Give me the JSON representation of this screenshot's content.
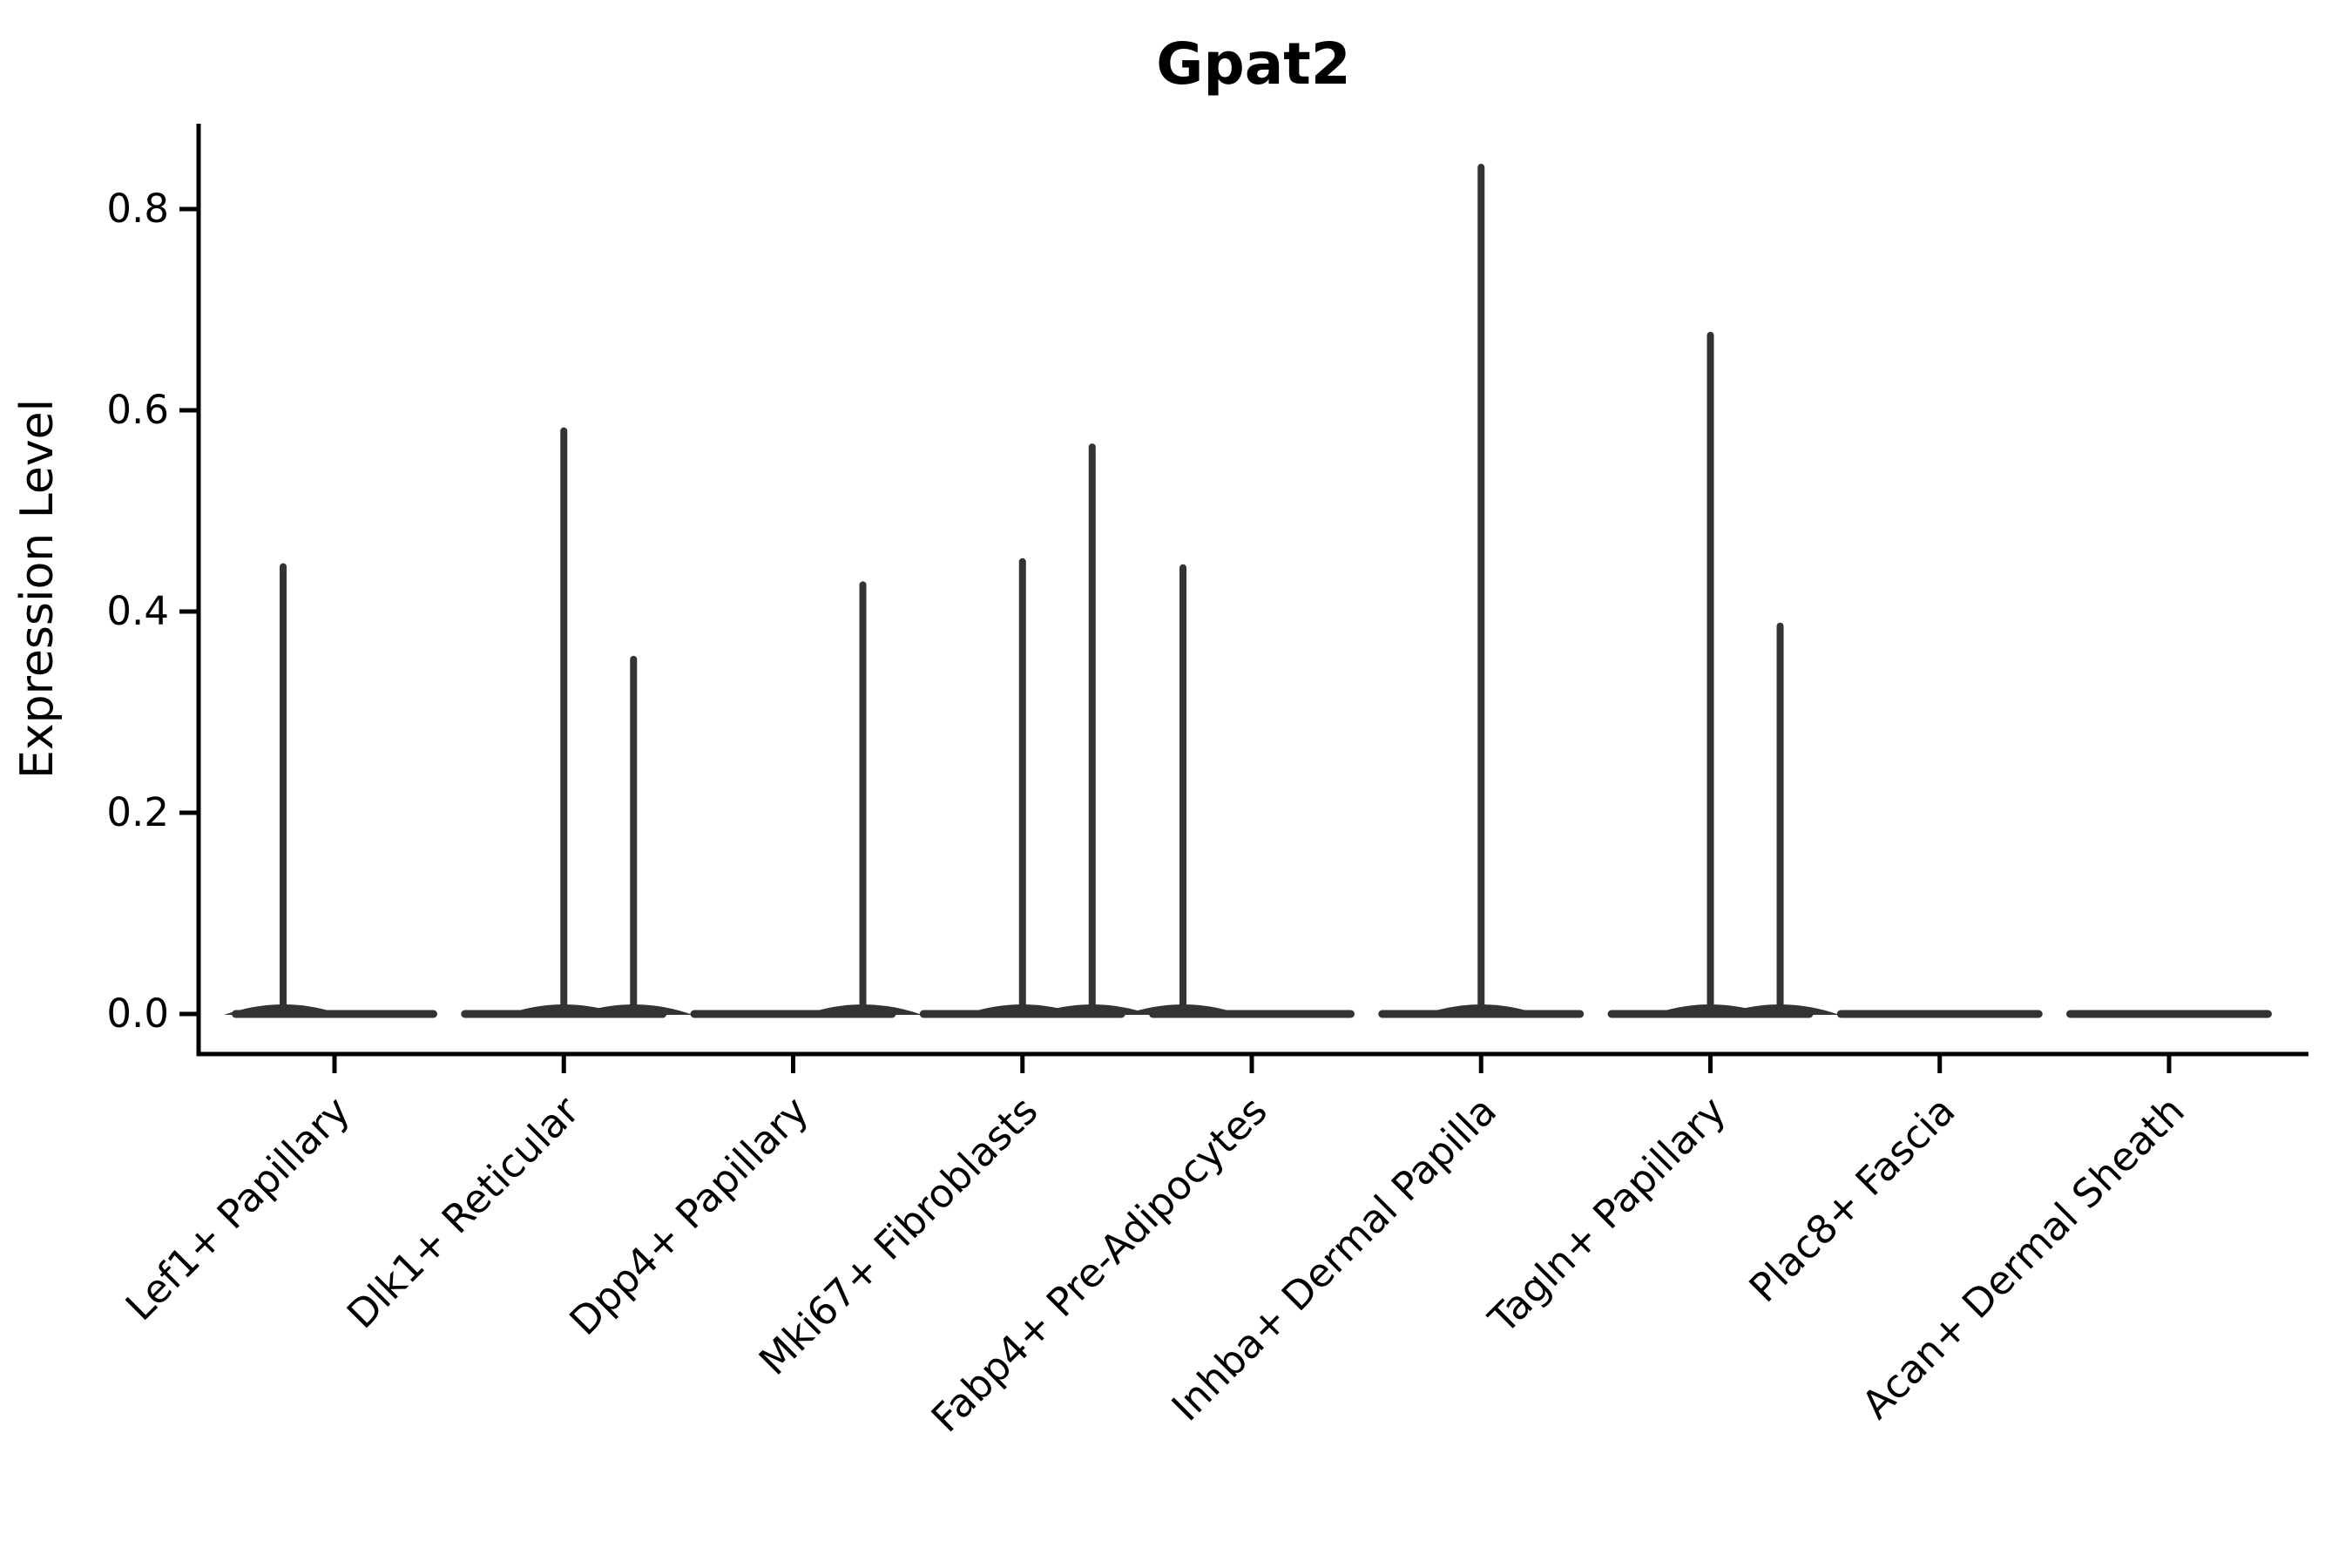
{
  "chart_data": {
    "type": "violin",
    "title": "Gpat2",
    "xlabel": "",
    "ylabel": "Expression Level",
    "categories": [
      "Lef1+ Papillary",
      "Dlk1+ Reticular",
      "Dpp4+ Papillary",
      "Mki67+ Fibroblasts",
      "Fabp4+ Pre-Adipocytes",
      "Inhba+ Dermal Papilla",
      "Tagln+ Papillary",
      "Plac8+ Fascia",
      "Acan+ Dermal Sheath"
    ],
    "yticks": [
      "0.0",
      "0.2",
      "0.4",
      "0.6",
      "0.8"
    ],
    "ylim": [
      0.0,
      0.885
    ],
    "x_tick_rotation_deg": 45,
    "grid": false,
    "legend_position": "none",
    "series": [
      {
        "category": "Lef1+ Papillary",
        "baseline_value": 0.0,
        "spikes": [
          {
            "x_offset_frac": -0.224,
            "value": 0.448
          }
        ]
      },
      {
        "category": "Dlk1+ Reticular",
        "baseline_value": 0.0,
        "spikes": [
          {
            "x_offset_frac": 0.0,
            "value": 0.583
          },
          {
            "x_offset_frac": 0.304,
            "value": 0.356
          }
        ]
      },
      {
        "category": "Dpp4+ Papillary",
        "baseline_value": 0.0,
        "spikes": [
          {
            "x_offset_frac": 0.304,
            "value": 0.43
          }
        ]
      },
      {
        "category": "Mki67+ Fibroblasts",
        "baseline_value": 0.0,
        "spikes": [
          {
            "x_offset_frac": 0.0,
            "value": 0.453
          },
          {
            "x_offset_frac": 0.304,
            "value": 0.567
          }
        ]
      },
      {
        "category": "Fabp4+ Pre-Adipocytes",
        "baseline_value": 0.0,
        "spikes": [
          {
            "x_offset_frac": -0.3,
            "value": 0.447
          }
        ]
      },
      {
        "category": "Inhba+ Dermal Papilla",
        "baseline_value": 0.0,
        "spikes": [
          {
            "x_offset_frac": 0.0,
            "value": 0.845
          }
        ]
      },
      {
        "category": "Tagln+ Papillary",
        "baseline_value": 0.0,
        "spikes": [
          {
            "x_offset_frac": 0.0,
            "value": 0.678
          },
          {
            "x_offset_frac": 0.304,
            "value": 0.389
          }
        ]
      },
      {
        "category": "Plac8+ Fascia",
        "baseline_value": 0.0,
        "spikes": []
      },
      {
        "category": "Acan+ Dermal Sheath",
        "baseline_value": 0.0,
        "spikes": []
      }
    ],
    "colors": {
      "violin": "#333333",
      "axis": "#000000",
      "text": "#000000",
      "background": "#ffffff"
    }
  }
}
